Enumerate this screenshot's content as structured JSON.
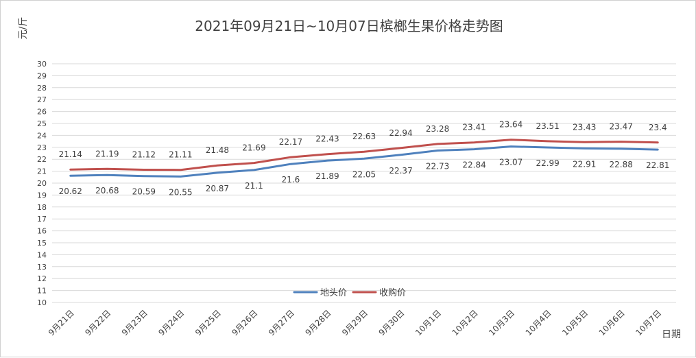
{
  "chart_data": {
    "type": "line",
    "title": "2021年09月21日~10月07日槟榔生果价格走势图",
    "ylabel": "元/斤",
    "xlabel": "日期",
    "ylim": [
      10,
      30
    ],
    "ytick_step": 1,
    "grid": true,
    "legend_position": "bottom-center",
    "categories": [
      "9月21日",
      "9月22日",
      "9月23日",
      "9月24日",
      "9月25日",
      "9月26日",
      "9月27日",
      "9月28日",
      "9月29日",
      "9月30日",
      "10月1日",
      "10月2日",
      "10月3日",
      "10月4日",
      "10月5日",
      "10月6日",
      "10月7日"
    ],
    "series": [
      {
        "name": "地头价",
        "color": "#4F81BD",
        "label_side": "below",
        "values": [
          20.62,
          20.68,
          20.59,
          20.55,
          20.87,
          21.1,
          21.6,
          21.89,
          22.05,
          22.37,
          22.73,
          22.84,
          23.07,
          22.99,
          22.91,
          22.88,
          22.81
        ]
      },
      {
        "name": "收购价",
        "color": "#C0504D",
        "label_side": "above",
        "values": [
          21.14,
          21.19,
          21.12,
          21.11,
          21.48,
          21.69,
          22.17,
          22.43,
          22.63,
          22.94,
          23.28,
          23.41,
          23.64,
          23.51,
          23.43,
          23.47,
          23.4
        ]
      }
    ]
  }
}
